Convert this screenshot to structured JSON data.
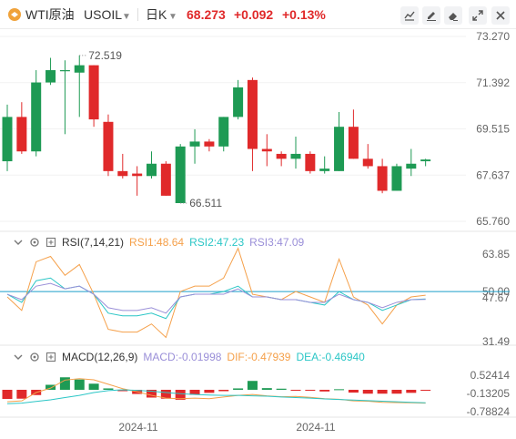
{
  "header": {
    "symbol_name": "WTI原油",
    "symbol_code": "USOIL",
    "dropdown_icon": "chevron-down-icon",
    "period": "日K",
    "price": "68.273",
    "change": "+0.092",
    "change_pct": "+0.13%",
    "up_color": "#e0292a",
    "down_color": "#1e9a54",
    "tools": [
      "draw-line-icon",
      "pen-icon",
      "eraser-icon",
      "expand-icon",
      "close-icon"
    ]
  },
  "chart_data": [
    {
      "type": "candlestick",
      "title": "",
      "y_ticks": [
        "73.270",
        "71.392",
        "69.515",
        "67.637",
        "65.760"
      ],
      "ylim": [
        65.76,
        73.27
      ],
      "annotations": {
        "max": "72.519",
        "min": "66.511"
      },
      "candles": [
        {
          "o": 68.2,
          "h": 70.5,
          "l": 67.8,
          "c": 70.0
        },
        {
          "o": 70.0,
          "h": 70.6,
          "l": 68.5,
          "c": 68.6
        },
        {
          "o": 68.6,
          "h": 71.9,
          "l": 68.4,
          "c": 71.4
        },
        {
          "o": 71.4,
          "h": 72.4,
          "l": 71.3,
          "c": 71.9
        },
        {
          "o": 71.9,
          "h": 72.3,
          "l": 69.3,
          "c": 71.9
        },
        {
          "o": 71.8,
          "h": 72.5,
          "l": 70.0,
          "c": 72.1
        },
        {
          "o": 72.1,
          "h": 72.1,
          "l": 69.6,
          "c": 69.9
        },
        {
          "o": 69.8,
          "h": 70.1,
          "l": 67.6,
          "c": 67.8
        },
        {
          "o": 67.8,
          "h": 68.5,
          "l": 67.5,
          "c": 67.6
        },
        {
          "o": 67.7,
          "h": 68.0,
          "l": 66.8,
          "c": 67.6
        },
        {
          "o": 67.6,
          "h": 68.6,
          "l": 67.5,
          "c": 68.1
        },
        {
          "o": 68.1,
          "h": 68.2,
          "l": 66.8,
          "c": 66.8
        },
        {
          "o": 66.5,
          "h": 68.9,
          "l": 66.5,
          "c": 68.8
        },
        {
          "o": 68.8,
          "h": 69.5,
          "l": 68.1,
          "c": 69.0
        },
        {
          "o": 69.0,
          "h": 69.1,
          "l": 68.6,
          "c": 68.8
        },
        {
          "o": 68.8,
          "h": 70.0,
          "l": 68.6,
          "c": 70.0
        },
        {
          "o": 70.0,
          "h": 71.5,
          "l": 69.9,
          "c": 71.2
        },
        {
          "o": 71.5,
          "h": 71.6,
          "l": 67.8,
          "c": 68.7
        },
        {
          "o": 68.7,
          "h": 69.3,
          "l": 68.0,
          "c": 68.6
        },
        {
          "o": 68.5,
          "h": 68.6,
          "l": 68.0,
          "c": 68.3
        },
        {
          "o": 68.3,
          "h": 69.2,
          "l": 67.9,
          "c": 68.5
        },
        {
          "o": 68.5,
          "h": 68.6,
          "l": 67.7,
          "c": 67.8
        },
        {
          "o": 67.8,
          "h": 68.4,
          "l": 67.7,
          "c": 67.9
        },
        {
          "o": 67.8,
          "h": 70.2,
          "l": 67.8,
          "c": 69.6
        },
        {
          "o": 69.6,
          "h": 70.3,
          "l": 68.3,
          "c": 68.3
        },
        {
          "o": 68.3,
          "h": 68.9,
          "l": 67.9,
          "c": 68.0
        },
        {
          "o": 68.0,
          "h": 68.3,
          "l": 66.9,
          "c": 67.0
        },
        {
          "o": 67.0,
          "h": 68.1,
          "l": 67.0,
          "c": 68.0
        },
        {
          "o": 67.9,
          "h": 68.7,
          "l": 67.6,
          "c": 68.1
        },
        {
          "o": 68.2,
          "h": 68.3,
          "l": 68.0,
          "c": 68.27
        }
      ]
    },
    {
      "type": "line",
      "title": "RSI(7,14,21)",
      "y_ticks": [
        "63.85",
        "50.00",
        "47.67",
        "31.49"
      ],
      "ylim": [
        31.49,
        63.85
      ],
      "series": [
        {
          "name": "RSI1:48.64",
          "color": "#f5a04a",
          "values": [
            48,
            43,
            61,
            63,
            56,
            60,
            49,
            36,
            35,
            35,
            38,
            33,
            50,
            52,
            52,
            55,
            66,
            49,
            48,
            47,
            50,
            48,
            46,
            62,
            48,
            45,
            38,
            45,
            48,
            48.64
          ]
        },
        {
          "name": "RSI2:47.23",
          "color": "#2bc6c6",
          "values": [
            49,
            46,
            54,
            55,
            51,
            52,
            49,
            42,
            41,
            41,
            42,
            40,
            48,
            49,
            49,
            50,
            52,
            48,
            48,
            47,
            47,
            46,
            45,
            50,
            47,
            46,
            43,
            45,
            47,
            47.23
          ]
        },
        {
          "name": "RSI3:47.09",
          "color": "#9a8fd8",
          "values": [
            49,
            47,
            52,
            53,
            51,
            52,
            49,
            44,
            43,
            43,
            44,
            42,
            48,
            49,
            49,
            49,
            51,
            48,
            48,
            47,
            47,
            46,
            46,
            49,
            47,
            46,
            44,
            46,
            47,
            47.09
          ]
        }
      ]
    },
    {
      "type": "bar",
      "title": "MACD(12,26,9)",
      "y_ticks": [
        "0.52414",
        "-0.13205",
        "-0.78824"
      ],
      "ylim": [
        -0.78824,
        0.52414
      ],
      "values": [
        -0.33,
        -0.32,
        -0.19,
        0.18,
        0.45,
        0.37,
        0.22,
        0.05,
        -0.05,
        -0.15,
        -0.28,
        -0.32,
        -0.36,
        -0.18,
        -0.11,
        -0.05,
        0.05,
        0.32,
        0.06,
        0.04,
        -0.02,
        -0.02,
        -0.06,
        0.02,
        -0.1,
        -0.14,
        -0.14,
        -0.14,
        -0.11,
        -0.02
      ],
      "series": [
        {
          "name": "DIF:-0.47939",
          "color": "#f5a04a",
          "values": [
            -0.43,
            -0.4,
            -0.1,
            0.06,
            0.35,
            0.4,
            0.36,
            0.2,
            0.04,
            -0.07,
            -0.2,
            -0.3,
            -0.32,
            -0.3,
            -0.32,
            -0.26,
            -0.2,
            -0.17,
            -0.22,
            -0.25,
            -0.24,
            -0.27,
            -0.32,
            -0.34,
            -0.4,
            -0.41,
            -0.45,
            -0.46,
            -0.47,
            -0.48
          ]
        },
        {
          "name": "DEA:-0.46940",
          "color": "#2bc6c6",
          "values": [
            -0.5,
            -0.48,
            -0.42,
            -0.36,
            -0.28,
            -0.2,
            -0.1,
            -0.03,
            0.0,
            -0.02,
            -0.05,
            -0.1,
            -0.14,
            -0.17,
            -0.19,
            -0.2,
            -0.2,
            -0.22,
            -0.23,
            -0.26,
            -0.28,
            -0.3,
            -0.33,
            -0.35,
            -0.37,
            -0.39,
            -0.41,
            -0.43,
            -0.45,
            -0.47
          ]
        },
        {
          "name": "MACD:-0.01998",
          "color": "#9a8fd8",
          "values": []
        }
      ]
    }
  ],
  "x_axis_labels": [
    "2024-11",
    "2024-11"
  ],
  "rsi_header": {
    "label": "RSI(7,14,21)",
    "rsi1": "RSI1:48.64",
    "rsi2": "RSI2:47.23",
    "rsi3": "RSI3:47.09"
  },
  "macd_header": {
    "label": "MACD(12,26,9)",
    "macd": "MACD:-0.01998",
    "dif": "DIF:-0.47939",
    "dea": "DEA:-0.46940"
  },
  "reference_line_color": "#1b9fc9"
}
